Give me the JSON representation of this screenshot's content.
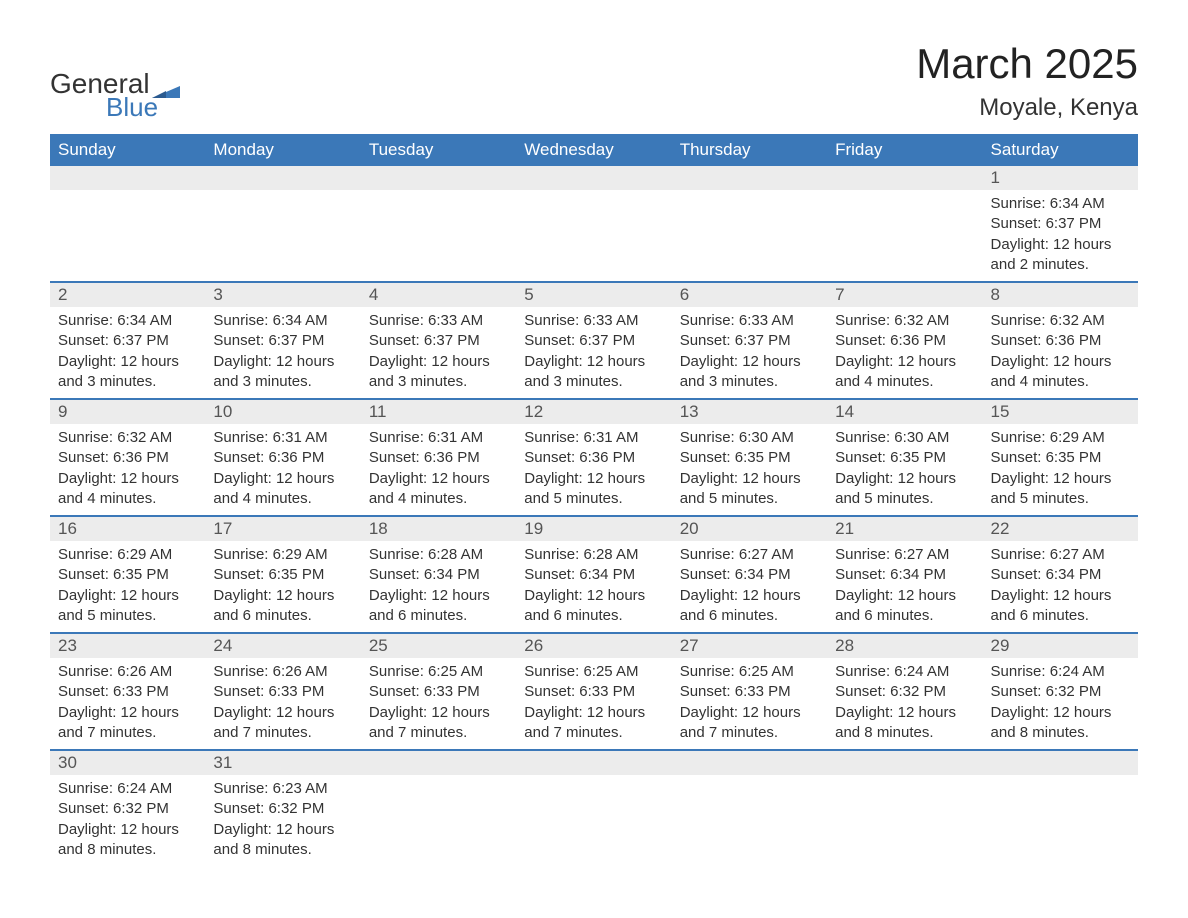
{
  "logo": {
    "general": "General",
    "blue": "Blue"
  },
  "title": "March 2025",
  "location": "Moyale, Kenya",
  "colors": {
    "header_bg": "#3b78b8",
    "header_fg": "#ffffff",
    "daynum_bg": "#ececec",
    "border": "#3b78b8",
    "text": "#333333",
    "logo_accent": "#3b78b8"
  },
  "day_headers": [
    "Sunday",
    "Monday",
    "Tuesday",
    "Wednesday",
    "Thursday",
    "Friday",
    "Saturday"
  ],
  "weeks": [
    [
      null,
      null,
      null,
      null,
      null,
      null,
      {
        "n": "1",
        "sunrise": "Sunrise: 6:34 AM",
        "sunset": "Sunset: 6:37 PM",
        "daylight": "Daylight: 12 hours and 2 minutes."
      }
    ],
    [
      {
        "n": "2",
        "sunrise": "Sunrise: 6:34 AM",
        "sunset": "Sunset: 6:37 PM",
        "daylight": "Daylight: 12 hours and 3 minutes."
      },
      {
        "n": "3",
        "sunrise": "Sunrise: 6:34 AM",
        "sunset": "Sunset: 6:37 PM",
        "daylight": "Daylight: 12 hours and 3 minutes."
      },
      {
        "n": "4",
        "sunrise": "Sunrise: 6:33 AM",
        "sunset": "Sunset: 6:37 PM",
        "daylight": "Daylight: 12 hours and 3 minutes."
      },
      {
        "n": "5",
        "sunrise": "Sunrise: 6:33 AM",
        "sunset": "Sunset: 6:37 PM",
        "daylight": "Daylight: 12 hours and 3 minutes."
      },
      {
        "n": "6",
        "sunrise": "Sunrise: 6:33 AM",
        "sunset": "Sunset: 6:37 PM",
        "daylight": "Daylight: 12 hours and 3 minutes."
      },
      {
        "n": "7",
        "sunrise": "Sunrise: 6:32 AM",
        "sunset": "Sunset: 6:36 PM",
        "daylight": "Daylight: 12 hours and 4 minutes."
      },
      {
        "n": "8",
        "sunrise": "Sunrise: 6:32 AM",
        "sunset": "Sunset: 6:36 PM",
        "daylight": "Daylight: 12 hours and 4 minutes."
      }
    ],
    [
      {
        "n": "9",
        "sunrise": "Sunrise: 6:32 AM",
        "sunset": "Sunset: 6:36 PM",
        "daylight": "Daylight: 12 hours and 4 minutes."
      },
      {
        "n": "10",
        "sunrise": "Sunrise: 6:31 AM",
        "sunset": "Sunset: 6:36 PM",
        "daylight": "Daylight: 12 hours and 4 minutes."
      },
      {
        "n": "11",
        "sunrise": "Sunrise: 6:31 AM",
        "sunset": "Sunset: 6:36 PM",
        "daylight": "Daylight: 12 hours and 4 minutes."
      },
      {
        "n": "12",
        "sunrise": "Sunrise: 6:31 AM",
        "sunset": "Sunset: 6:36 PM",
        "daylight": "Daylight: 12 hours and 5 minutes."
      },
      {
        "n": "13",
        "sunrise": "Sunrise: 6:30 AM",
        "sunset": "Sunset: 6:35 PM",
        "daylight": "Daylight: 12 hours and 5 minutes."
      },
      {
        "n": "14",
        "sunrise": "Sunrise: 6:30 AM",
        "sunset": "Sunset: 6:35 PM",
        "daylight": "Daylight: 12 hours and 5 minutes."
      },
      {
        "n": "15",
        "sunrise": "Sunrise: 6:29 AM",
        "sunset": "Sunset: 6:35 PM",
        "daylight": "Daylight: 12 hours and 5 minutes."
      }
    ],
    [
      {
        "n": "16",
        "sunrise": "Sunrise: 6:29 AM",
        "sunset": "Sunset: 6:35 PM",
        "daylight": "Daylight: 12 hours and 5 minutes."
      },
      {
        "n": "17",
        "sunrise": "Sunrise: 6:29 AM",
        "sunset": "Sunset: 6:35 PM",
        "daylight": "Daylight: 12 hours and 6 minutes."
      },
      {
        "n": "18",
        "sunrise": "Sunrise: 6:28 AM",
        "sunset": "Sunset: 6:34 PM",
        "daylight": "Daylight: 12 hours and 6 minutes."
      },
      {
        "n": "19",
        "sunrise": "Sunrise: 6:28 AM",
        "sunset": "Sunset: 6:34 PM",
        "daylight": "Daylight: 12 hours and 6 minutes."
      },
      {
        "n": "20",
        "sunrise": "Sunrise: 6:27 AM",
        "sunset": "Sunset: 6:34 PM",
        "daylight": "Daylight: 12 hours and 6 minutes."
      },
      {
        "n": "21",
        "sunrise": "Sunrise: 6:27 AM",
        "sunset": "Sunset: 6:34 PM",
        "daylight": "Daylight: 12 hours and 6 minutes."
      },
      {
        "n": "22",
        "sunrise": "Sunrise: 6:27 AM",
        "sunset": "Sunset: 6:34 PM",
        "daylight": "Daylight: 12 hours and 6 minutes."
      }
    ],
    [
      {
        "n": "23",
        "sunrise": "Sunrise: 6:26 AM",
        "sunset": "Sunset: 6:33 PM",
        "daylight": "Daylight: 12 hours and 7 minutes."
      },
      {
        "n": "24",
        "sunrise": "Sunrise: 6:26 AM",
        "sunset": "Sunset: 6:33 PM",
        "daylight": "Daylight: 12 hours and 7 minutes."
      },
      {
        "n": "25",
        "sunrise": "Sunrise: 6:25 AM",
        "sunset": "Sunset: 6:33 PM",
        "daylight": "Daylight: 12 hours and 7 minutes."
      },
      {
        "n": "26",
        "sunrise": "Sunrise: 6:25 AM",
        "sunset": "Sunset: 6:33 PM",
        "daylight": "Daylight: 12 hours and 7 minutes."
      },
      {
        "n": "27",
        "sunrise": "Sunrise: 6:25 AM",
        "sunset": "Sunset: 6:33 PM",
        "daylight": "Daylight: 12 hours and 7 minutes."
      },
      {
        "n": "28",
        "sunrise": "Sunrise: 6:24 AM",
        "sunset": "Sunset: 6:32 PM",
        "daylight": "Daylight: 12 hours and 8 minutes."
      },
      {
        "n": "29",
        "sunrise": "Sunrise: 6:24 AM",
        "sunset": "Sunset: 6:32 PM",
        "daylight": "Daylight: 12 hours and 8 minutes."
      }
    ],
    [
      {
        "n": "30",
        "sunrise": "Sunrise: 6:24 AM",
        "sunset": "Sunset: 6:32 PM",
        "daylight": "Daylight: 12 hours and 8 minutes."
      },
      {
        "n": "31",
        "sunrise": "Sunrise: 6:23 AM",
        "sunset": "Sunset: 6:32 PM",
        "daylight": "Daylight: 12 hours and 8 minutes."
      },
      null,
      null,
      null,
      null,
      null
    ]
  ]
}
